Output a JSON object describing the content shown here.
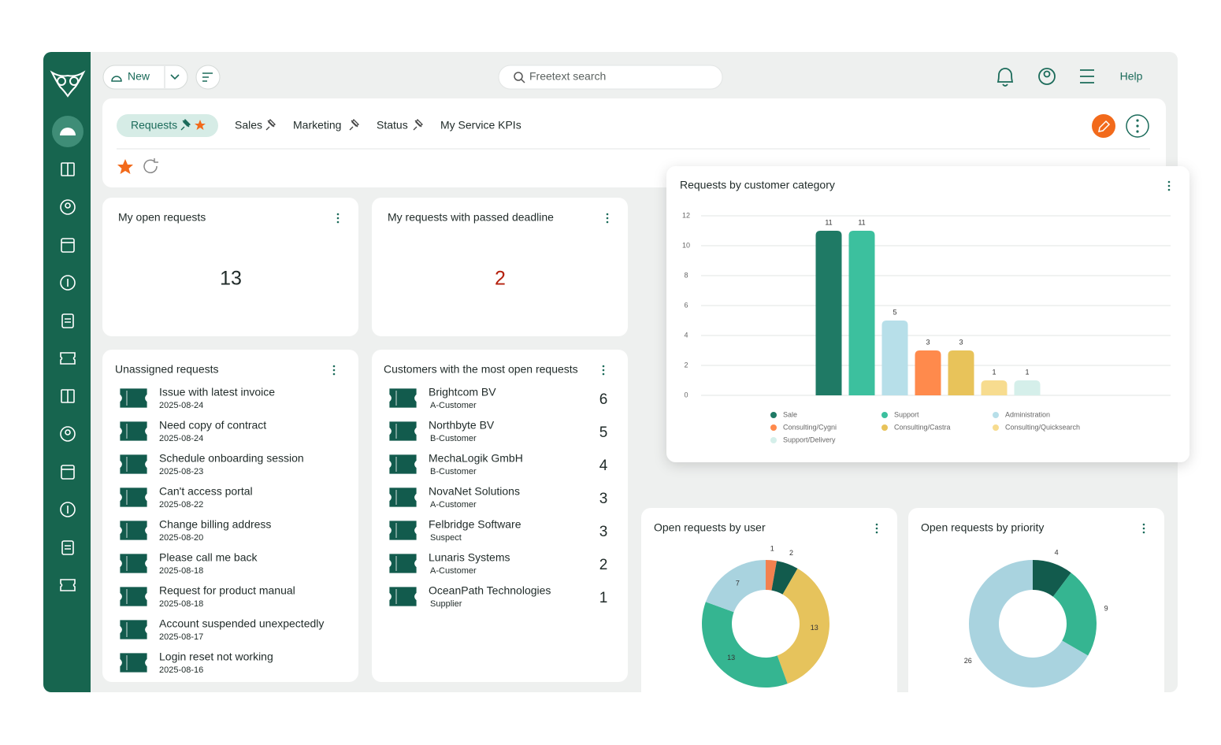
{
  "toolbar": {
    "new_button": "New",
    "search_placeholder": "Freetext search",
    "help": "Help"
  },
  "tabs": [
    "Requests",
    "Sales",
    "Marketing",
    "Status",
    "My Service KPIs"
  ],
  "kpis": [
    {
      "title": "My open requests",
      "value": 13
    },
    {
      "title": "My requests with passed deadline",
      "value": 2
    }
  ],
  "unassigned_requests": {
    "title": "Unassigned requests",
    "items": [
      {
        "title": "Issue with latest invoice",
        "date": "2025-08-24"
      },
      {
        "title": "Need copy of contract",
        "date": "2025-08-24"
      },
      {
        "title": "Schedule onboarding session",
        "date": "2025-08-23"
      },
      {
        "title": "Can't access portal",
        "date": "2025-08-22"
      },
      {
        "title": "Change billing address",
        "date": "2025-08-20"
      },
      {
        "title": "Please call me back",
        "date": "2025-08-18"
      },
      {
        "title": "Request for product manual",
        "date": "2025-08-18"
      },
      {
        "title": "Account suspended unexpectedly",
        "date": "2025-08-17"
      },
      {
        "title": "Login reset not working",
        "date": "2025-08-16"
      }
    ]
  },
  "top_customers": {
    "title": "Customers with the most open requests",
    "items": [
      {
        "name": "Brightcom BV",
        "category": "A-Customer",
        "open": 6
      },
      {
        "name": "Northbyte BV",
        "category": "B-Customer",
        "open": 5
      },
      {
        "name": "MechaLogik GmbH",
        "category": "B-Customer",
        "open": 4
      },
      {
        "name": "NovaNet Solutions",
        "category": "A-Customer",
        "open": 3
      },
      {
        "name": "Felbridge Software",
        "category": "Suspect",
        "open": 3
      },
      {
        "name": "Lunaris Systems",
        "category": "A-Customer",
        "open": 2
      },
      {
        "name": "OceanPath Technologies",
        "category": "Supplier",
        "open": 1
      }
    ]
  },
  "chart_data": [
    {
      "type": "bar",
      "title": "Requests by customer category",
      "categories": [
        "Sale",
        "Support",
        "Administration",
        "Consulting/Cygni",
        "Consulting/Castra",
        "Consulting/Quicksearch",
        "Support/Delivery"
      ],
      "values": [
        11,
        11,
        5,
        3,
        3,
        1,
        1
      ],
      "colors": [
        "#1f7a65",
        "#3cc09e",
        "#b7dfe9",
        "#ff8a4c",
        "#e8c35a",
        "#f7dc8f",
        "#d5efea"
      ],
      "ylim": [
        0,
        12
      ],
      "yticks": [
        0,
        2,
        4,
        6,
        8,
        10,
        12
      ],
      "grid": true,
      "legend": "bottom"
    },
    {
      "type": "donut",
      "title": "Open requests by user",
      "values": [
        1,
        2,
        13,
        13,
        7
      ],
      "colors": [
        "#f2814f",
        "#125b4d",
        "#e6c35c",
        "#35b591",
        "#a9d3df"
      ]
    },
    {
      "type": "donut",
      "title": "Open requests by priority",
      "values": [
        4,
        9,
        26
      ],
      "colors": [
        "#125b4d",
        "#35b591",
        "#a9d3df"
      ]
    }
  ]
}
